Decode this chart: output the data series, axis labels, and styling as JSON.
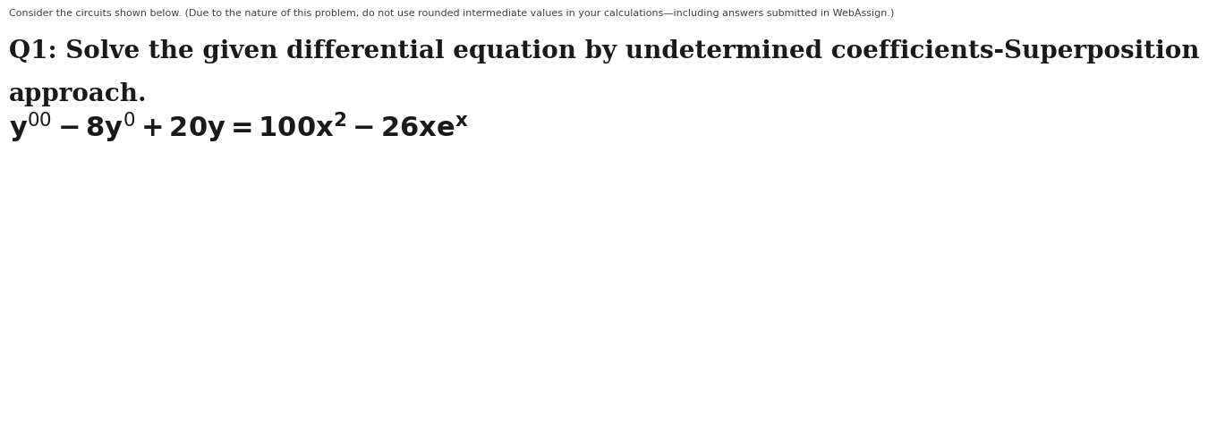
{
  "background_color": "#ffffff",
  "small_text": "Consider the circuits shown below. (Due to the nature of this problem, do not use rounded intermediate values in your calculations—including answers submitted in WebAssign.)",
  "small_text_fontsize": 8.0,
  "small_text_color": "#444444",
  "heading_line1": "Q1: Solve the given differential equation by undetermined coefficients-Superposition",
  "heading_line2": "approach.",
  "heading_fontsize": 20,
  "heading_color": "#1a1a1a",
  "equation": "$\\mathbf{y'' - 8y' + 20y = 100x^2 - 26xe^x}$",
  "equation_fontsize": 22,
  "equation_color": "#1a1a1a"
}
